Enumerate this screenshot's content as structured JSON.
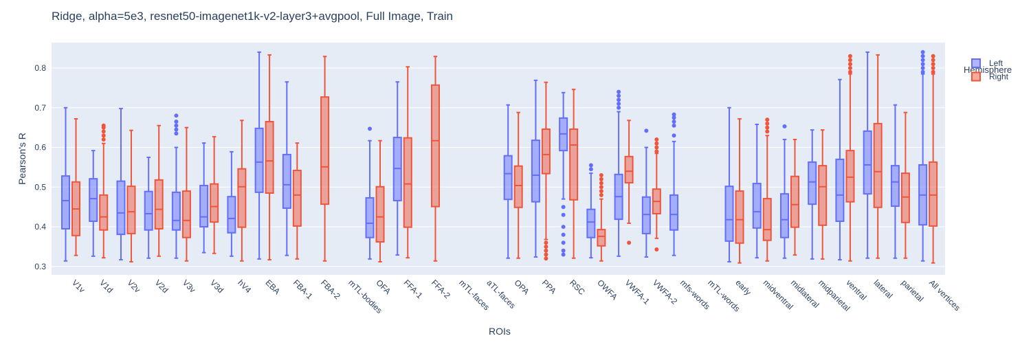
{
  "chart_data": {
    "type": "box",
    "title": "Ridge, alpha=5e3, resnet50-imagenet1k-v2-layer3+avgpool, Full Image, Train",
    "x_label": "ROIs",
    "y_label": "Pearson's R",
    "legend_title": "Hemisphere",
    "categories": [
      "V1v",
      "V1d",
      "V2v",
      "V2d",
      "V3v",
      "V3d",
      "hV4",
      "EBA",
      "FBA-1",
      "FBA-2",
      "mTL-bodies",
      "OFA",
      "FFA-1",
      "FFA-2",
      "mTL-faces",
      "aTL-faces",
      "OPA",
      "PPA",
      "RSC",
      "OWFA",
      "VWFA-1",
      "VWFA-2",
      "mfs-words",
      "mTL-words",
      "early",
      "midventral",
      "midlateral",
      "midparietal",
      "ventral",
      "lateral",
      "parietal",
      "All vertices"
    ],
    "ylim": [
      0.279,
      0.864
    ],
    "yticks": [
      0.3,
      0.4,
      0.5,
      0.6,
      0.7,
      0.8
    ],
    "grid": true,
    "legend_position": "right",
    "series": [
      {
        "name": "Left",
        "color": "#636efa",
        "lowerfence": [
          0.314,
          0.326,
          0.317,
          0.321,
          0.321,
          0.335,
          0.326,
          0.319,
          0.328,
          null,
          null,
          0.319,
          0.329,
          null,
          null,
          null,
          0.321,
          0.324,
          0.47,
          0.322,
          0.326,
          0.324,
          0.328,
          null,
          0.312,
          0.322,
          0.321,
          0.319,
          0.317,
          0.321,
          0.321,
          0.314
        ],
        "q1": [
          0.395,
          0.414,
          0.381,
          0.392,
          0.392,
          0.4,
          0.385,
          0.487,
          0.447,
          null,
          null,
          0.373,
          0.466,
          null,
          null,
          null,
          0.469,
          0.463,
          0.592,
          0.373,
          0.419,
          0.383,
          0.392,
          null,
          0.364,
          0.397,
          0.373,
          0.457,
          0.414,
          0.483,
          0.452,
          0.405
        ],
        "median": [
          0.466,
          0.471,
          0.435,
          0.433,
          0.416,
          0.425,
          0.421,
          0.563,
          0.506,
          null,
          null,
          0.409,
          0.547,
          null,
          null,
          null,
          0.534,
          0.53,
          0.634,
          0.412,
          0.476,
          0.431,
          0.431,
          null,
          0.418,
          0.438,
          0.418,
          0.513,
          0.48,
          0.556,
          0.513,
          0.48
        ],
        "q3": [
          0.528,
          0.521,
          0.515,
          0.489,
          0.487,
          0.504,
          0.476,
          0.648,
          0.582,
          null,
          null,
          0.473,
          0.625,
          null,
          null,
          null,
          0.579,
          0.618,
          0.674,
          0.444,
          0.532,
          0.475,
          0.48,
          null,
          0.502,
          0.509,
          0.483,
          0.563,
          0.57,
          0.641,
          0.554,
          0.556
        ],
        "upperfence": [
          0.7,
          0.592,
          0.698,
          0.575,
          0.6,
          0.611,
          0.589,
          0.84,
          0.765,
          null,
          null,
          0.617,
          0.765,
          null,
          null,
          null,
          0.707,
          0.769,
          0.738,
          0.535,
          0.69,
          0.6,
          0.615,
          null,
          0.7,
          0.658,
          0.62,
          0.644,
          0.771,
          0.84,
          0.707,
          0.785
        ],
        "outliers": [
          [],
          [],
          [],
          [],
          [
            0.635,
            0.645,
            0.655,
            0.665,
            0.68
          ],
          [],
          [],
          [],
          [],
          [],
          [],
          [
            0.647
          ],
          [],
          [],
          [],
          [],
          [],
          [],
          [
            0.45,
            0.43,
            0.4,
            0.38,
            0.36,
            0.34,
            0.33
          ],
          [
            0.545,
            0.555
          ],
          [
            0.7,
            0.71,
            0.72,
            0.73,
            0.74
          ],
          [
            0.642
          ],
          [
            0.63,
            0.655,
            0.665,
            0.675,
            0.683
          ],
          [],
          [],
          [],
          [
            0.653
          ],
          [],
          [],
          [],
          [],
          [
            0.79,
            0.8,
            0.81,
            0.82,
            0.83,
            0.84
          ]
        ]
      },
      {
        "name": "Right",
        "color": "#ef553b",
        "lowerfence": [
          0.328,
          0.322,
          0.312,
          0.326,
          0.314,
          0.333,
          0.314,
          0.317,
          0.319,
          0.314,
          null,
          0.312,
          0.322,
          0.314,
          null,
          null,
          0.321,
          0.368,
          0.321,
          0.314,
          0.409,
          0.371,
          null,
          null,
          0.309,
          0.314,
          0.329,
          0.319,
          0.314,
          0.321,
          0.321,
          0.309
        ],
        "q1": [
          0.378,
          0.392,
          0.383,
          0.395,
          0.373,
          0.412,
          0.399,
          0.485,
          0.402,
          0.457,
          null,
          0.362,
          0.399,
          0.451,
          null,
          null,
          0.449,
          0.534,
          0.468,
          0.352,
          0.511,
          0.433,
          null,
          null,
          0.359,
          0.366,
          0.399,
          0.404,
          0.463,
          0.449,
          0.411,
          0.402
        ],
        "median": [
          0.445,
          0.425,
          0.438,
          0.444,
          0.416,
          0.451,
          0.501,
          0.566,
          0.48,
          0.551,
          null,
          0.425,
          0.508,
          0.617,
          null,
          null,
          0.504,
          0.582,
          0.606,
          0.376,
          0.54,
          0.464,
          null,
          null,
          0.418,
          0.393,
          0.456,
          0.501,
          0.525,
          0.539,
          0.475,
          0.48
        ],
        "q3": [
          0.513,
          0.48,
          0.502,
          0.518,
          0.49,
          0.508,
          0.546,
          0.665,
          0.542,
          0.727,
          null,
          0.501,
          0.624,
          0.757,
          null,
          null,
          0.553,
          0.646,
          0.646,
          0.393,
          0.577,
          0.495,
          null,
          null,
          0.49,
          0.471,
          0.527,
          0.554,
          0.592,
          0.66,
          0.535,
          0.563
        ],
        "upperfence": [
          0.672,
          0.61,
          0.643,
          0.655,
          0.65,
          0.627,
          0.668,
          0.833,
          0.611,
          0.829,
          null,
          0.617,
          0.803,
          0.829,
          null,
          null,
          0.688,
          0.764,
          0.746,
          0.47,
          0.668,
          0.585,
          null,
          null,
          0.672,
          0.63,
          0.62,
          0.644,
          0.785,
          0.833,
          0.688,
          0.785
        ],
        "outliers": [
          [],
          [
            0.62,
            0.63,
            0.64,
            0.65,
            0.655
          ],
          [],
          [],
          [],
          [],
          [],
          [],
          [],
          [],
          [],
          [],
          [],
          [],
          [],
          [],
          [],
          [
            0.36,
            0.35,
            0.34,
            0.33,
            0.32
          ],
          [],
          [
            0.48,
            0.49,
            0.5,
            0.51,
            0.52,
            0.53
          ],
          [
            0.36
          ],
          [
            0.59,
            0.6,
            0.61,
            0.62,
            0.343
          ],
          [],
          [],
          [],
          [
            0.64,
            0.65,
            0.66,
            0.67
          ],
          [],
          [],
          [
            0.79,
            0.8,
            0.81,
            0.82,
            0.83
          ],
          [],
          [],
          [
            0.79,
            0.8,
            0.81,
            0.82,
            0.83
          ]
        ]
      }
    ]
  }
}
